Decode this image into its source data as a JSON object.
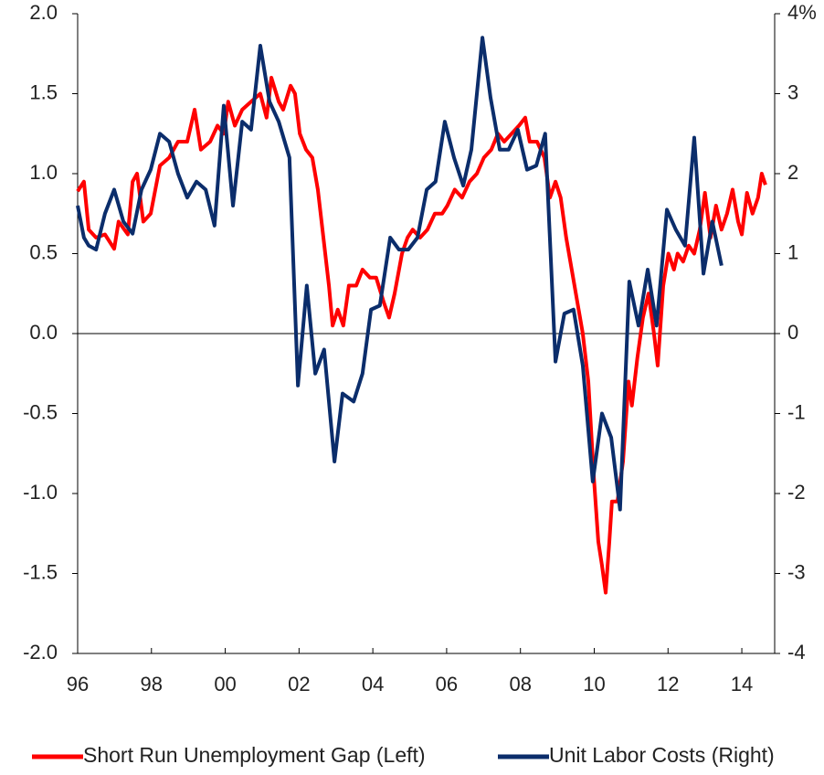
{
  "chart_data": {
    "type": "line",
    "xlim": [
      1996,
      2014.89
    ],
    "xticks": [
      {
        "value": 1996,
        "label": "96"
      },
      {
        "value": 1998,
        "label": "98"
      },
      {
        "value": 2000,
        "label": "00"
      },
      {
        "value": 2002,
        "label": "02"
      },
      {
        "value": 2004,
        "label": "04"
      },
      {
        "value": 2006,
        "label": "06"
      },
      {
        "value": 2008,
        "label": "08"
      },
      {
        "value": 2010,
        "label": "10"
      },
      {
        "value": 2012,
        "label": "12"
      },
      {
        "value": 2014,
        "label": "14"
      }
    ],
    "ylim": [
      -2,
      2
    ],
    "yticks": [
      {
        "value": -2,
        "label": "-2.0"
      },
      -1.5,
      {
        "value": -1,
        "label": "-1.0"
      },
      -0.5,
      {
        "value": 0,
        "label": "0.0"
      },
      0.5,
      {
        "value": 1,
        "label": "1.0"
      },
      1.5,
      {
        "value": 2,
        "label": "2.0"
      }
    ],
    "y2lim": [
      -4,
      4
    ],
    "y2ticks": [
      -4,
      -3,
      -2,
      -1,
      0,
      1,
      2,
      3,
      {
        "value": 4,
        "label": "4%"
      }
    ],
    "legend": "bottom",
    "series": [
      {
        "name": "Short Run Unemployment Gap (Left)",
        "color": "#ff0000",
        "x": [
          1996.0,
          1996.17,
          1996.3,
          1996.5,
          1996.74,
          1996.99,
          1997.11,
          1997.36,
          1997.49,
          1997.61,
          1997.78,
          1997.98,
          1998.23,
          1998.48,
          1998.72,
          1998.97,
          1999.17,
          1999.34,
          1999.59,
          1999.79,
          1999.96,
          2000.08,
          2000.26,
          2000.46,
          2000.7,
          2000.95,
          2001.12,
          2001.25,
          2001.45,
          2001.57,
          2001.77,
          2001.89,
          2002.02,
          2002.19,
          2002.36,
          2002.51,
          2002.66,
          2002.81,
          2002.91,
          2003.05,
          2003.2,
          2003.35,
          2003.55,
          2003.72,
          2003.92,
          2004.09,
          2004.29,
          2004.44,
          2004.59,
          2004.79,
          2004.94,
          2005.08,
          2005.28,
          2005.48,
          2005.68,
          2005.88,
          2006.02,
          2006.22,
          2006.42,
          2006.62,
          2006.82,
          2007.01,
          2007.21,
          2007.39,
          2007.56,
          2007.76,
          2007.96,
          2008.13,
          2008.25,
          2008.45,
          2008.65,
          2008.8,
          2008.95,
          2009.09,
          2009.24,
          2009.39,
          2009.54,
          2009.69,
          2009.84,
          2009.99,
          2010.11,
          2010.21,
          2010.31,
          2010.41,
          2010.48,
          2010.63,
          2010.78,
          2010.93,
          2011.02,
          2011.17,
          2011.32,
          2011.47,
          2011.62,
          2011.72,
          2011.87,
          2012.01,
          2012.16,
          2012.26,
          2012.41,
          2012.56,
          2012.71,
          2012.86,
          2013.0,
          2013.15,
          2013.3,
          2013.45,
          2013.6,
          2013.75,
          2013.9,
          2014.0,
          2014.14,
          2014.29,
          2014.44,
          2014.54,
          2014.64
        ],
        "values": [
          0.89,
          0.95,
          0.65,
          0.6,
          0.62,
          0.53,
          0.7,
          0.62,
          0.95,
          1.0,
          0.7,
          0.75,
          1.05,
          1.1,
          1.2,
          1.2,
          1.4,
          1.15,
          1.2,
          1.3,
          1.25,
          1.45,
          1.3,
          1.4,
          1.45,
          1.5,
          1.35,
          1.6,
          1.45,
          1.4,
          1.55,
          1.5,
          1.25,
          1.15,
          1.1,
          0.9,
          0.6,
          0.3,
          0.05,
          0.15,
          0.05,
          0.3,
          0.3,
          0.4,
          0.35,
          0.35,
          0.2,
          0.1,
          0.25,
          0.5,
          0.6,
          0.65,
          0.6,
          0.65,
          0.75,
          0.75,
          0.8,
          0.9,
          0.85,
          0.95,
          1.0,
          1.1,
          1.15,
          1.25,
          1.2,
          1.25,
          1.3,
          1.35,
          1.2,
          1.2,
          1.1,
          0.85,
          0.95,
          0.85,
          0.6,
          0.4,
          0.2,
          0.0,
          -0.3,
          -0.9,
          -1.3,
          -1.45,
          -1.62,
          -1.3,
          -1.05,
          -1.05,
          -0.8,
          -0.3,
          -0.45,
          -0.15,
          0.1,
          0.25,
          0.0,
          -0.2,
          0.3,
          0.5,
          0.4,
          0.5,
          0.45,
          0.55,
          0.5,
          0.65,
          0.88,
          0.6,
          0.8,
          0.65,
          0.75,
          0.9,
          0.7,
          0.62,
          0.88,
          0.75,
          0.85,
          1.0,
          0.93
        ]
      },
      {
        "name": "Unit Labor Costs (Right)",
        "color": "#0b2d6b",
        "axis": "y2",
        "x": [
          1996.0,
          1996.17,
          1996.3,
          1996.5,
          1996.74,
          1996.99,
          1997.24,
          1997.49,
          1997.73,
          1997.98,
          1998.23,
          1998.48,
          1998.72,
          1998.97,
          1999.22,
          1999.47,
          1999.71,
          1999.96,
          2000.21,
          2000.46,
          2000.7,
          2000.95,
          2001.2,
          2001.45,
          2001.74,
          2001.97,
          2002.21,
          2002.44,
          2002.68,
          2002.96,
          2003.18,
          2003.48,
          2003.72,
          2003.95,
          2004.19,
          2004.47,
          2004.71,
          2004.96,
          2005.21,
          2005.46,
          2005.7,
          2005.95,
          2006.2,
          2006.45,
          2006.67,
          2006.97,
          2007.19,
          2007.44,
          2007.68,
          2007.93,
          2008.18,
          2008.43,
          2008.67,
          2008.95,
          2009.19,
          2009.44,
          2009.69,
          2009.96,
          2010.21,
          2010.46,
          2010.7,
          2010.95,
          2011.2,
          2011.45,
          2011.69,
          2011.97,
          2012.21,
          2012.46,
          2012.71,
          2012.96,
          2013.2,
          2013.45
        ],
        "values": [
          1.6,
          1.2,
          1.1,
          1.05,
          1.5,
          1.8,
          1.4,
          1.25,
          1.8,
          2.05,
          2.5,
          2.4,
          2.0,
          1.7,
          1.9,
          1.8,
          1.35,
          2.85,
          1.6,
          2.65,
          2.55,
          3.6,
          2.9,
          2.65,
          2.2,
          -0.65,
          0.6,
          -0.5,
          -0.2,
          -1.6,
          -0.75,
          -0.85,
          -0.5,
          0.3,
          0.35,
          1.2,
          1.05,
          1.05,
          1.2,
          1.8,
          1.9,
          2.65,
          2.2,
          1.85,
          2.3,
          3.7,
          2.95,
          2.3,
          2.3,
          2.55,
          2.05,
          2.1,
          2.5,
          -0.35,
          0.25,
          0.3,
          -0.4,
          -1.85,
          -1.0,
          -1.3,
          -2.2,
          0.65,
          0.1,
          0.8,
          0.1,
          1.55,
          1.3,
          1.1,
          2.45,
          0.75,
          1.4,
          0.85
        ]
      }
    ]
  }
}
